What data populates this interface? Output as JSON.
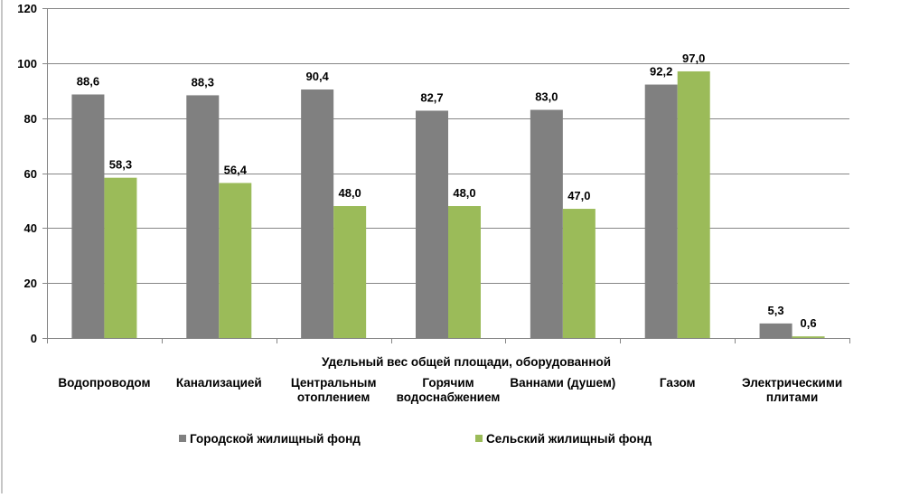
{
  "chart_data": {
    "type": "bar",
    "x_group_label": "Удельный вес общей площади, оборудованной",
    "categories": [
      [
        "Водопроводом"
      ],
      [
        "Канализацией"
      ],
      [
        "Центральным",
        "отоплением"
      ],
      [
        "Горячим",
        "водоснабжением"
      ],
      [
        "Ваннами (душем)"
      ],
      [
        "Газом"
      ],
      [
        "Электрическими",
        "плитами"
      ]
    ],
    "series": [
      {
        "name": "Городской жилищный фонд",
        "color": "#808080",
        "values": [
          88.6,
          88.3,
          90.4,
          82.7,
          83.0,
          92.2,
          5.3
        ],
        "labels": [
          "88,6",
          "88,3",
          "90,4",
          "82,7",
          "83,0",
          "92,2",
          "5,3"
        ]
      },
      {
        "name": "Сельский жилищный фонд",
        "color": "#9BBB59",
        "values": [
          58.3,
          56.4,
          48.0,
          48.0,
          47.0,
          97.0,
          0.6
        ],
        "labels": [
          "58,3",
          "56,4",
          "48,0",
          "48,0",
          "47,0",
          "97,0",
          "0,6"
        ]
      }
    ],
    "ylim": [
      0,
      120
    ],
    "yticks": [
      "0",
      "20",
      "40",
      "60",
      "80",
      "100",
      "120"
    ],
    "grid": true,
    "legend_position": "bottom"
  }
}
